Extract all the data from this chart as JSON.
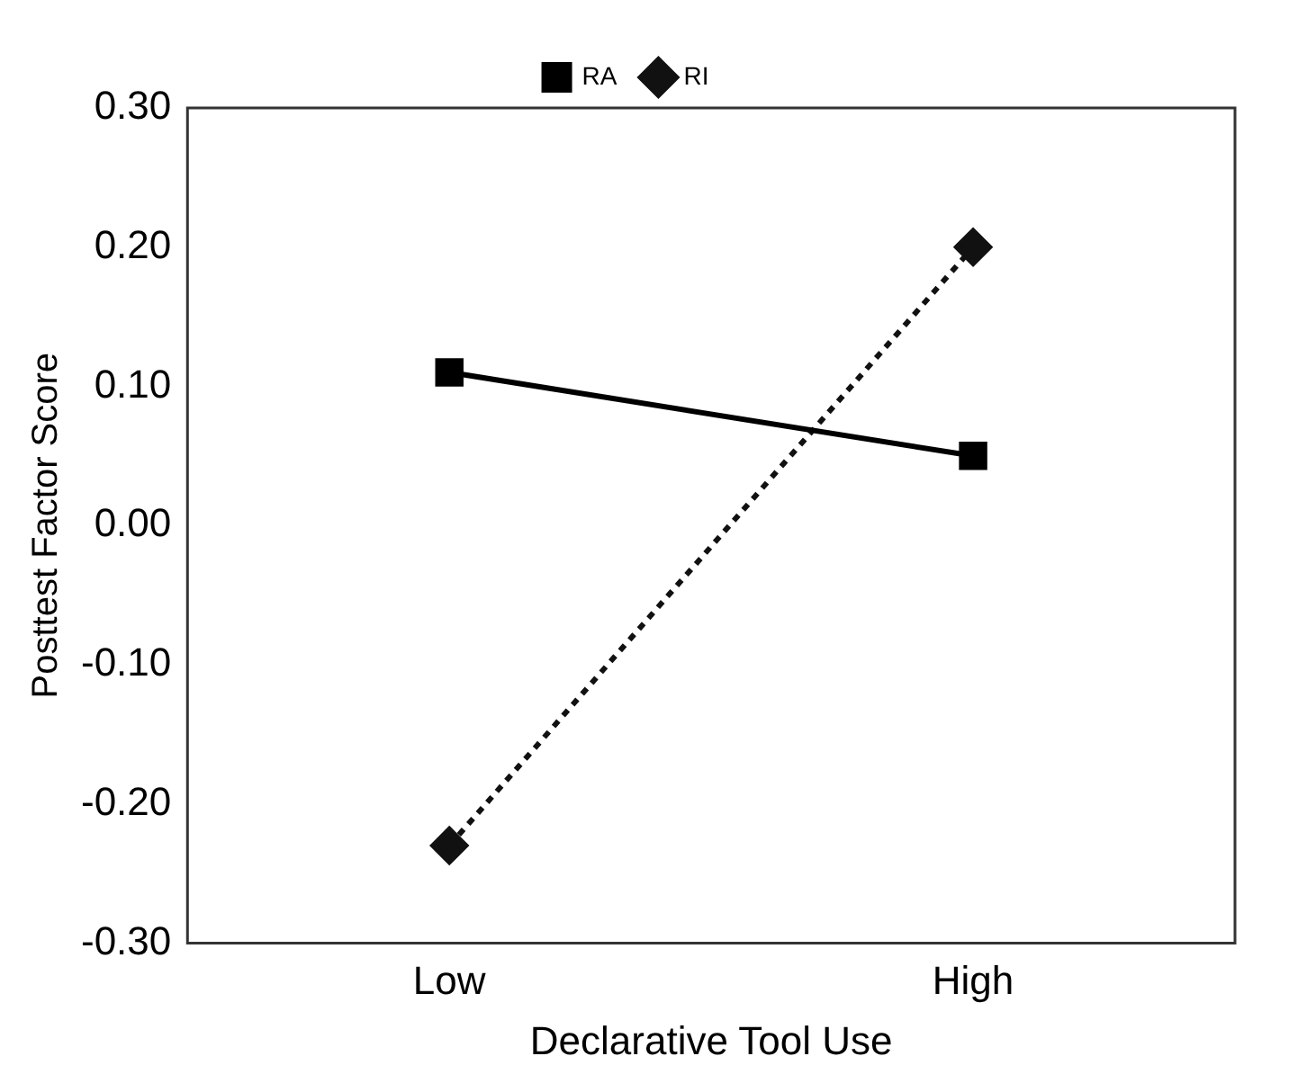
{
  "chart_data": {
    "type": "line",
    "xlabel": "Declarative Tool Use",
    "ylabel": "Posttest Factor Score",
    "categories": [
      "Low",
      "High"
    ],
    "series": [
      {
        "name": "RA",
        "color": "#000000",
        "values": [
          0.11,
          0.05
        ],
        "marker": "square",
        "line_style": "solid"
      },
      {
        "name": "RI",
        "color": "#111111",
        "values": [
          -0.23,
          0.2
        ],
        "marker": "diamond",
        "line_style": "dotted"
      }
    ],
    "ylim": [
      -0.3,
      0.3
    ],
    "yticks": [
      {
        "value": -0.3,
        "label": "-0.30"
      },
      {
        "value": -0.2,
        "label": "-0.20"
      },
      {
        "value": -0.1,
        "label": "-0.10"
      },
      {
        "value": 0,
        "label": "0.00"
      },
      {
        "value": 0.1,
        "label": "0.10"
      },
      {
        "value": 0.2,
        "label": "0.20"
      },
      {
        "value": 0.3,
        "label": "0.30"
      }
    ],
    "grid": false,
    "legend": "top"
  }
}
